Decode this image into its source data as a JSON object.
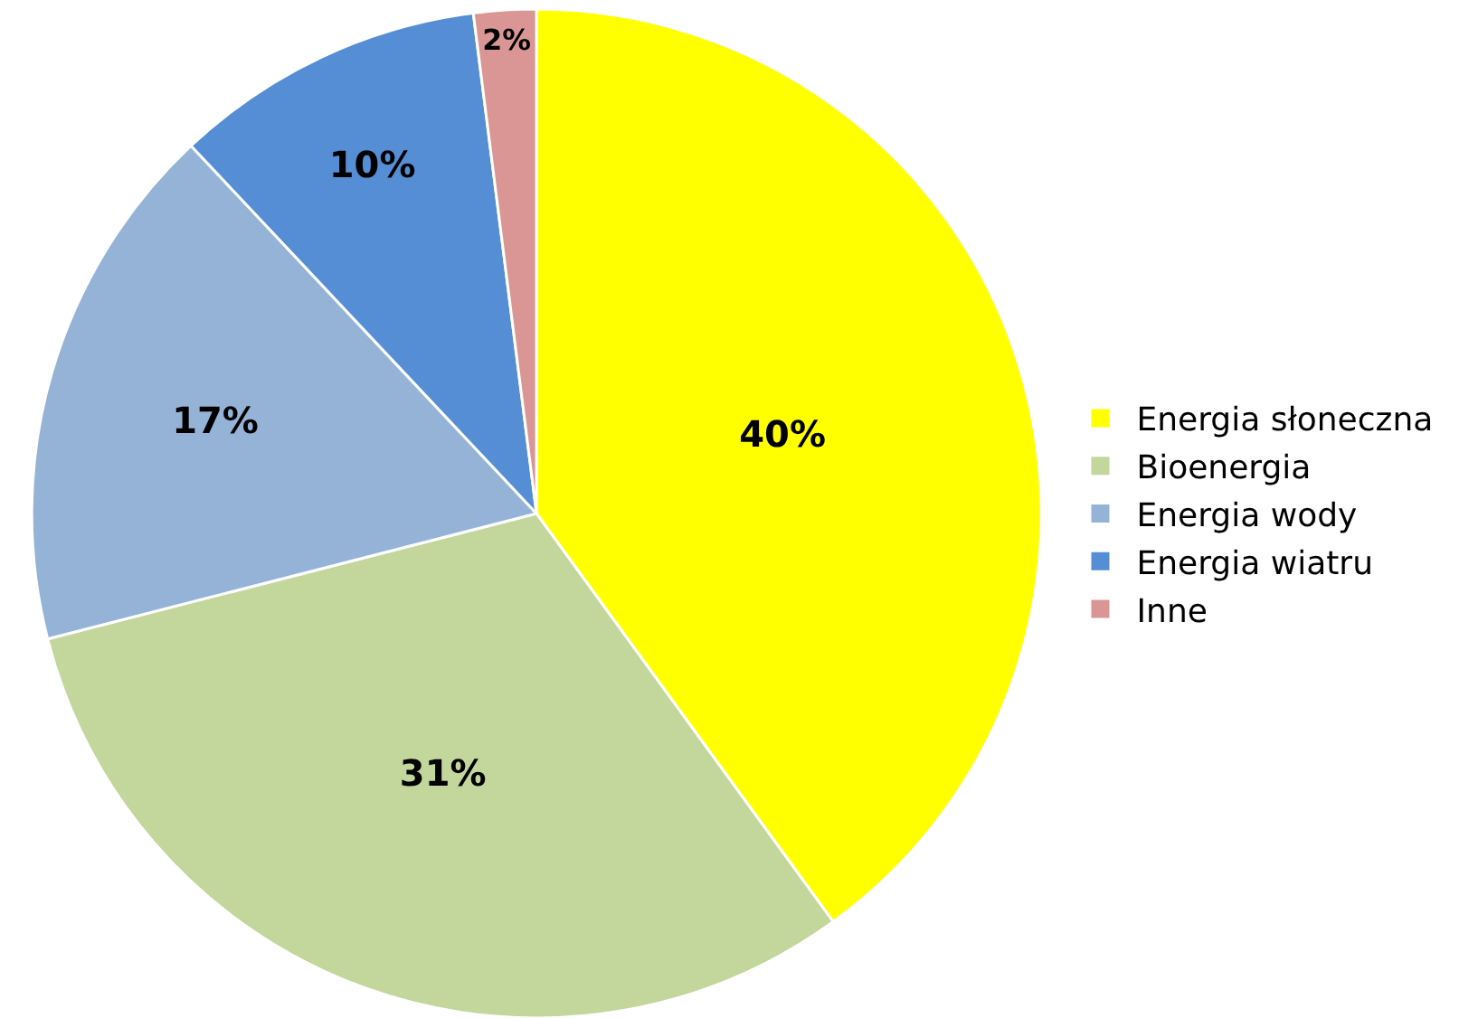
{
  "chart_data": {
    "type": "pie",
    "categories": [
      "Energia słoneczna",
      "Bioenergia",
      "Energia wody",
      "Energia wiatru",
      "Inne"
    ],
    "values": [
      40,
      31,
      17,
      10,
      2
    ],
    "colors": [
      "#ffff00",
      "#c3d69b",
      "#95b3d7",
      "#558ed5",
      "#d99694"
    ],
    "value_labels": [
      "40%",
      "31%",
      "17%",
      "10%",
      "2%"
    ],
    "legend": "right"
  }
}
